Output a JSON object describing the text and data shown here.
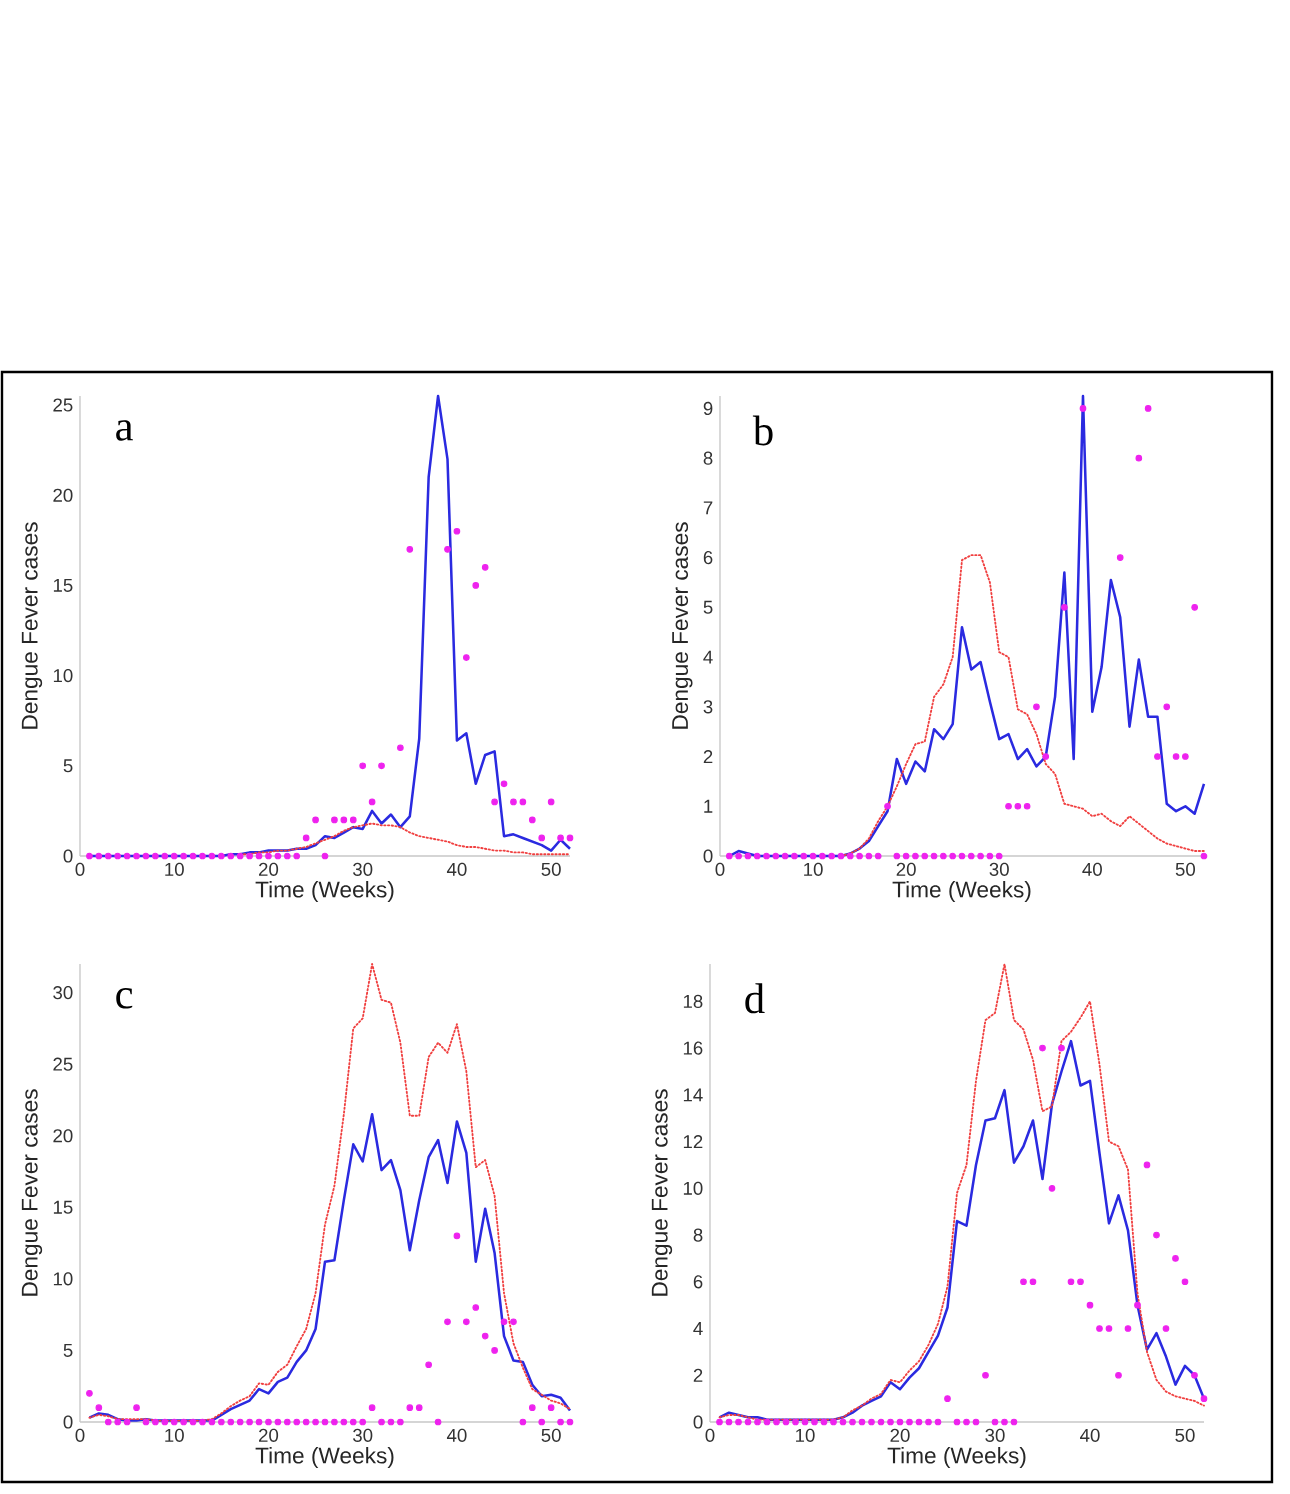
{
  "chart_data": [
    {
      "type": "line",
      "xlabel": "Time (Weeks)",
      "ylabel": "Dengue Fever cases",
      "annotations": [
        "a"
      ],
      "x": [
        1,
        2,
        3,
        4,
        5,
        6,
        7,
        8,
        9,
        10,
        11,
        12,
        13,
        14,
        15,
        16,
        17,
        18,
        19,
        20,
        21,
        22,
        23,
        24,
        25,
        26,
        27,
        28,
        29,
        30,
        31,
        32,
        33,
        34,
        35,
        36,
        37,
        38,
        39,
        40,
        41,
        42,
        43,
        44,
        45,
        46,
        47,
        48,
        49,
        50,
        51,
        52
      ],
      "xlim": [
        0,
        52
      ],
      "xticks": [
        0,
        10,
        20,
        30,
        40,
        50
      ],
      "ylim": [
        0,
        25.5
      ],
      "yticks": [
        0,
        5,
        10,
        15,
        20,
        25
      ],
      "series": [
        {
          "color": "#2a2ae0",
          "line_style": "solid",
          "marker": "none",
          "values": [
            0,
            0,
            0,
            0,
            0,
            0,
            0,
            0,
            0,
            0,
            0,
            0,
            0,
            0,
            0,
            0.1,
            0.1,
            0.2,
            0.2,
            0.3,
            0.3,
            0.3,
            0.4,
            0.4,
            0.6,
            1.1,
            1.0,
            1.3,
            1.6,
            1.5,
            2.5,
            1.8,
            2.3,
            1.6,
            2.2,
            6.5,
            21,
            25.5,
            22,
            6.4,
            6.8,
            4.0,
            5.6,
            5.8,
            1.1,
            1.2,
            1.0,
            0.8,
            0.6,
            0.3,
            0.9,
            0.4
          ]
        },
        {
          "color": "#f04040",
          "line_style": "dotted",
          "marker": "none",
          "values": [
            null,
            null,
            null,
            null,
            null,
            null,
            null,
            null,
            null,
            null,
            null,
            null,
            null,
            null,
            null,
            null,
            0.1,
            0.1,
            0.2,
            0.2,
            0.3,
            0.3,
            0.4,
            0.5,
            0.7,
            0.9,
            1.1,
            1.4,
            1.6,
            1.7,
            1.8,
            1.7,
            1.7,
            1.6,
            1.3,
            1.1,
            1.0,
            0.9,
            0.8,
            0.6,
            0.5,
            0.5,
            0.4,
            0.3,
            0.3,
            0.2,
            0.2,
            0.1,
            0.1,
            0.1,
            0.1,
            0.1
          ]
        },
        {
          "type": "scatter",
          "color": "#ee22ee",
          "marker": "circle",
          "values": [
            0,
            0,
            0,
            0,
            0,
            0,
            0,
            0,
            0,
            0,
            0,
            0,
            0,
            0,
            0,
            0,
            0,
            0,
            0,
            0,
            0,
            0,
            0,
            1,
            2,
            0,
            2,
            2,
            2,
            5,
            3,
            5,
            null,
            6,
            17,
            null,
            null,
            null,
            17,
            18,
            11,
            15,
            16,
            3,
            4,
            3,
            3,
            2,
            1,
            3,
            1,
            1
          ]
        }
      ]
    },
    {
      "type": "line",
      "xlabel": "Time (Weeks)",
      "ylabel": "Dengue Fever cases",
      "annotations": [
        "b"
      ],
      "x": [
        1,
        2,
        3,
        4,
        5,
        6,
        7,
        8,
        9,
        10,
        11,
        12,
        13,
        14,
        15,
        16,
        17,
        18,
        19,
        20,
        21,
        22,
        23,
        24,
        25,
        26,
        27,
        28,
        29,
        30,
        31,
        32,
        33,
        34,
        35,
        36,
        37,
        38,
        39,
        40,
        41,
        42,
        43,
        44,
        45,
        46,
        47,
        48,
        49,
        50,
        51,
        52
      ],
      "xlim": [
        0,
        52
      ],
      "xticks": [
        0,
        10,
        20,
        30,
        40,
        50
      ],
      "ylim": [
        0,
        9.25
      ],
      "yticks": [
        0,
        1,
        2,
        3,
        4,
        5,
        6,
        7,
        8,
        9
      ],
      "series": [
        {
          "color": "#2a2ae0",
          "line_style": "solid",
          "marker": "none",
          "values": [
            0,
            0.1,
            0.05,
            0,
            0,
            0,
            0,
            0,
            0,
            0,
            0,
            0,
            0,
            0.05,
            0.15,
            0.3,
            0.6,
            0.9,
            1.95,
            1.45,
            1.9,
            1.7,
            2.55,
            2.35,
            2.65,
            4.6,
            3.75,
            3.9,
            3.1,
            2.35,
            2.45,
            1.95,
            2.15,
            1.8,
            2.0,
            3.2,
            5.7,
            1.95,
            9.25,
            2.9,
            3.8,
            5.55,
            4.8,
            2.6,
            3.95,
            2.8,
            2.8,
            1.05,
            0.9,
            1.0,
            0.85,
            1.45
          ]
        },
        {
          "color": "#f04040",
          "line_style": "dotted",
          "marker": "none",
          "values": [
            null,
            null,
            null,
            null,
            null,
            null,
            null,
            null,
            null,
            null,
            null,
            null,
            0,
            0.05,
            0.15,
            0.35,
            0.7,
            1.0,
            1.4,
            1.85,
            2.25,
            2.3,
            3.2,
            3.45,
            4.0,
            5.95,
            6.05,
            6.05,
            5.5,
            4.1,
            4.0,
            2.95,
            2.85,
            2.45,
            1.85,
            1.65,
            1.05,
            1.0,
            0.95,
            0.8,
            0.85,
            0.7,
            0.6,
            0.8,
            0.65,
            0.5,
            0.35,
            0.25,
            0.2,
            0.15,
            0.1,
            0.1
          ]
        },
        {
          "type": "scatter",
          "color": "#ee22ee",
          "marker": "circle",
          "values": [
            0,
            0,
            0,
            0,
            0,
            0,
            0,
            0,
            0,
            0,
            0,
            0,
            0,
            0,
            0,
            0,
            0,
            1,
            0,
            0,
            0,
            0,
            0,
            0,
            0,
            0,
            0,
            0,
            0,
            0,
            1,
            1,
            1,
            3,
            2,
            null,
            5,
            null,
            9,
            null,
            null,
            null,
            6,
            null,
            8,
            9,
            2,
            3,
            2,
            2,
            5,
            0
          ]
        }
      ]
    },
    {
      "type": "line",
      "xlabel": "Time (Weeks)",
      "ylabel": "Dengue Fever cases",
      "annotations": [
        "c"
      ],
      "x": [
        1,
        2,
        3,
        4,
        5,
        6,
        7,
        8,
        9,
        10,
        11,
        12,
        13,
        14,
        15,
        16,
        17,
        18,
        19,
        20,
        21,
        22,
        23,
        24,
        25,
        26,
        27,
        28,
        29,
        30,
        31,
        32,
        33,
        34,
        35,
        36,
        37,
        38,
        39,
        40,
        41,
        42,
        43,
        44,
        45,
        46,
        47,
        48,
        49,
        50,
        51,
        52
      ],
      "xlim": [
        0,
        52
      ],
      "xticks": [
        0,
        10,
        20,
        30,
        40,
        50
      ],
      "ylim": [
        0,
        32
      ],
      "yticks": [
        0,
        5,
        10,
        15,
        20,
        25,
        30
      ],
      "series": [
        {
          "color": "#2a2ae0",
          "line_style": "solid",
          "marker": "none",
          "values": [
            0.3,
            0.6,
            0.5,
            0.2,
            0.1,
            0.1,
            0.2,
            0.1,
            0.1,
            0.1,
            0.1,
            0.1,
            0.1,
            0.1,
            0.5,
            0.9,
            1.2,
            1.5,
            2.3,
            2.0,
            2.8,
            3.1,
            4.2,
            5.0,
            6.5,
            11.2,
            11.3,
            15.5,
            19.4,
            18.2,
            21.5,
            17.6,
            18.3,
            16.2,
            12.0,
            15.5,
            18.5,
            19.7,
            16.7,
            21.0,
            18.8,
            11.2,
            14.9,
            11.8,
            6.0,
            4.3,
            4.2,
            2.6,
            1.8,
            1.9,
            1.7,
            0.8
          ]
        },
        {
          "color": "#f04040",
          "line_style": "dotted",
          "marker": "none",
          "values": [
            0.3,
            0.5,
            0.4,
            0.2,
            0.2,
            0.2,
            0.2,
            0.1,
            0.1,
            0.1,
            0.1,
            0.1,
            0.1,
            0.2,
            0.6,
            1.1,
            1.5,
            1.8,
            2.7,
            2.6,
            3.5,
            4.0,
            5.3,
            6.5,
            9.0,
            13.8,
            16.5,
            21.5,
            27.5,
            28.2,
            32,
            29.5,
            29.3,
            26.5,
            21.4,
            21.4,
            25.5,
            26.5,
            25.8,
            27.8,
            24.5,
            17.8,
            18.3,
            15.8,
            9.0,
            5.5,
            3.8,
            2.3,
            1.9,
            1.5,
            1.3,
            0.9
          ]
        },
        {
          "type": "scatter",
          "color": "#ee22ee",
          "marker": "circle",
          "values": [
            2,
            1,
            0,
            0,
            0,
            1,
            0,
            0,
            0,
            0,
            0,
            0,
            0,
            0,
            0,
            0,
            0,
            0,
            0,
            0,
            0,
            0,
            0,
            0,
            0,
            0,
            0,
            0,
            0,
            0,
            1,
            0,
            0,
            0,
            1,
            1,
            4,
            0,
            7,
            13,
            7,
            8,
            6,
            5,
            7,
            7,
            0,
            1,
            0,
            1,
            0,
            0
          ]
        }
      ]
    },
    {
      "type": "line",
      "xlabel": "Time (Weeks)",
      "ylabel": "Dengue Fever cases",
      "annotations": [
        "d"
      ],
      "x": [
        1,
        2,
        3,
        4,
        5,
        6,
        7,
        8,
        9,
        10,
        11,
        12,
        13,
        14,
        15,
        16,
        17,
        18,
        19,
        20,
        21,
        22,
        23,
        24,
        25,
        26,
        27,
        28,
        29,
        30,
        31,
        32,
        33,
        34,
        35,
        36,
        37,
        38,
        39,
        40,
        41,
        42,
        43,
        44,
        45,
        46,
        47,
        48,
        49,
        50,
        51,
        52
      ],
      "xlim": [
        0,
        52
      ],
      "xticks": [
        0,
        10,
        20,
        30,
        40,
        50
      ],
      "ylim": [
        0,
        19.6
      ],
      "yticks": [
        0,
        2,
        4,
        6,
        8,
        10,
        12,
        14,
        16,
        18
      ],
      "series": [
        {
          "color": "#2a2ae0",
          "line_style": "solid",
          "marker": "none",
          "values": [
            0.2,
            0.4,
            0.3,
            0.2,
            0.2,
            0.1,
            0.1,
            0.1,
            0.1,
            0.1,
            0.1,
            0.1,
            0.1,
            0.2,
            0.4,
            0.7,
            0.9,
            1.1,
            1.7,
            1.4,
            1.9,
            2.3,
            3.0,
            3.7,
            4.9,
            8.6,
            8.4,
            11.0,
            12.9,
            13.0,
            14.2,
            11.1,
            11.8,
            12.9,
            10.4,
            13.6,
            15.0,
            16.3,
            14.4,
            14.6,
            11.5,
            8.5,
            9.7,
            8.2,
            5.0,
            3.1,
            3.8,
            2.8,
            1.6,
            2.4,
            2.0,
            1.0
          ]
        },
        {
          "color": "#f04040",
          "line_style": "dotted",
          "marker": "none",
          "values": [
            0.2,
            0.3,
            0.3,
            0.2,
            0.1,
            0.1,
            0.1,
            0.1,
            0.1,
            0.1,
            0.1,
            0.1,
            0.1,
            0.2,
            0.5,
            0.7,
            1.0,
            1.2,
            1.8,
            1.7,
            2.2,
            2.6,
            3.3,
            4.2,
            5.8,
            9.8,
            11.0,
            14.6,
            17.2,
            17.5,
            19.6,
            17.2,
            16.8,
            15.5,
            13.3,
            13.5,
            16.3,
            16.7,
            17.3,
            18.0,
            15.3,
            12.0,
            11.8,
            10.8,
            5.5,
            3.0,
            1.8,
            1.3,
            1.1,
            1.0,
            0.9,
            0.7
          ]
        },
        {
          "type": "scatter",
          "color": "#ee22ee",
          "marker": "circle",
          "values": [
            0,
            0,
            0,
            0,
            0,
            0,
            0,
            0,
            0,
            0,
            0,
            0,
            0,
            0,
            0,
            0,
            0,
            0,
            0,
            0,
            0,
            0,
            0,
            0,
            1,
            0,
            0,
            0,
            2,
            0,
            0,
            0,
            6,
            6,
            16,
            10,
            16,
            6,
            6,
            5,
            4,
            4,
            2,
            4,
            5,
            11,
            8,
            4,
            7,
            6,
            2,
            1
          ]
        }
      ]
    }
  ]
}
